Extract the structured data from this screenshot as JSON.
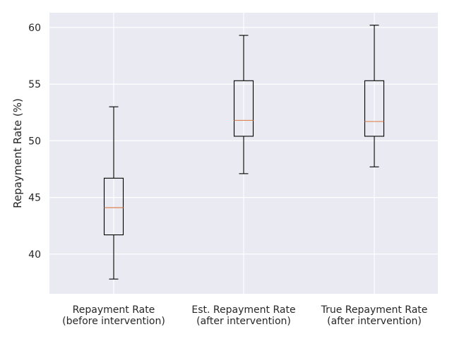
{
  "chart_data": {
    "type": "box",
    "ylabel": "Repayment Rate (%)",
    "ylim": [
      36.5,
      61.3
    ],
    "yticks": [
      "40",
      "45",
      "50",
      "55",
      "60"
    ],
    "grid": true,
    "categories": [
      [
        "Repayment Rate",
        "(before intervention)"
      ],
      [
        "Est. Repayment Rate",
        "(after intervention)"
      ],
      [
        "True Repayment Rate",
        "(after intervention)"
      ]
    ],
    "boxes": [
      {
        "whisker_low": 37.8,
        "q1": 41.7,
        "median": 44.1,
        "q3": 46.7,
        "whisker_high": 53.0
      },
      {
        "whisker_low": 47.1,
        "q1": 50.4,
        "median": 51.8,
        "q3": 55.3,
        "whisker_high": 59.3
      },
      {
        "whisker_low": 47.7,
        "q1": 50.4,
        "median": 51.7,
        "q3": 55.3,
        "whisker_high": 60.2
      }
    ],
    "colors": {
      "background": "#eaeaf2",
      "grid": "#ffffff",
      "box": "#000000",
      "median": "#dd8452"
    }
  }
}
